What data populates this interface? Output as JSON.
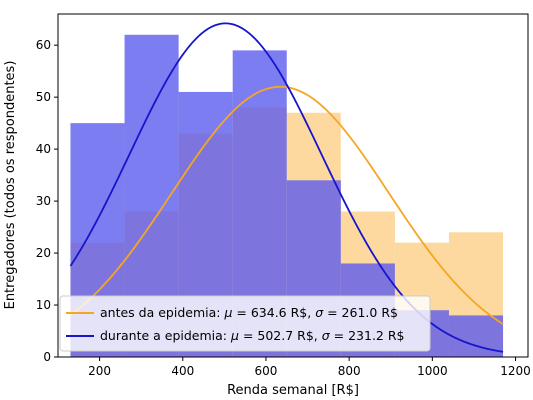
{
  "chart_data": {
    "type": "bar",
    "xlabel": "Renda semanal [R$]",
    "ylabel": "Entregadores (todos os respondentes)",
    "xlim": [
      100,
      1230
    ],
    "ylim": [
      0,
      66
    ],
    "xticks": [
      200,
      400,
      600,
      800,
      1000,
      1200
    ],
    "yticks": [
      0,
      10,
      20,
      30,
      40,
      50,
      60
    ],
    "grid": false,
    "legend_position": "lower-left",
    "bin_edges": [
      130,
      260,
      390,
      520,
      650,
      780,
      910,
      1040,
      1170
    ],
    "series": [
      {
        "key": "antes",
        "name": "antes da epidemia: μ = 634.6 R$, σ = 261.0 R$",
        "hist_color": "#fdd9a0",
        "line_color": "#f5a623",
        "counts": [
          22,
          28,
          43,
          48,
          47,
          28,
          22,
          24
        ],
        "mean": 634.6,
        "sd": 261.0,
        "curve_peak": 52
      },
      {
        "key": "durante",
        "name": "durante a epidemia: μ = 502.7 R$, σ = 231.2 R$",
        "hist_color": "#5858ee",
        "line_color": "#1515cc",
        "counts": [
          45,
          62,
          51,
          59,
          34,
          18,
          9,
          8
        ],
        "mean": 502.7,
        "sd": 231.2,
        "curve_peak": 64.2
      }
    ],
    "legend_items": [
      {
        "label_prefix": "antes da epidemia: ",
        "mu_val": "= 634.6 R$, ",
        "sigma_val": "= 261.0 R$"
      },
      {
        "label_prefix": "durante a epidemia: ",
        "mu_val": "= 502.7 R$, ",
        "sigma_val": "= 231.2 R$"
      }
    ]
  }
}
